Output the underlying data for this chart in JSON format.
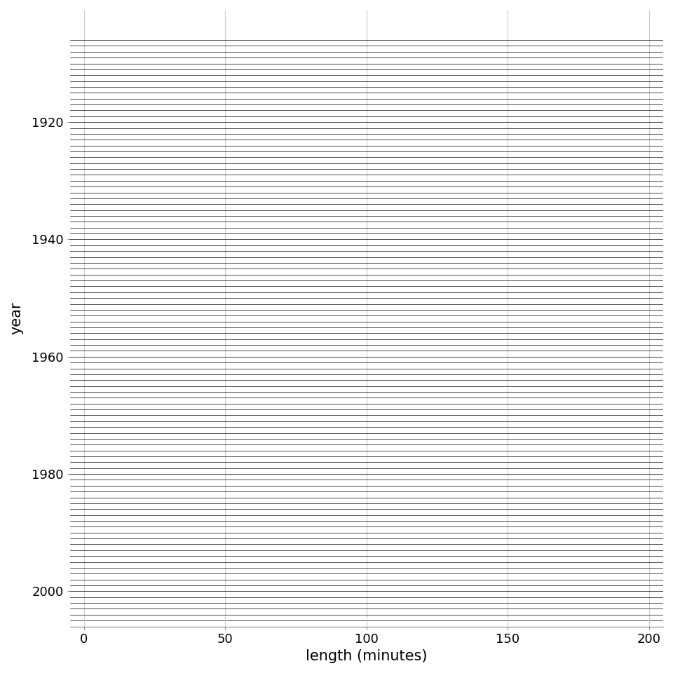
{
  "year_start": 1906,
  "year_end": 2005,
  "x_min": -5,
  "x_max": 205,
  "x_ticks": [
    0,
    50,
    100,
    150,
    200
  ],
  "y_ticks": [
    1920,
    1940,
    1960,
    1980,
    2000
  ],
  "xlabel": "length (minutes)",
  "ylabel": "year",
  "fill_color": "#d8d8d8",
  "fill_alpha": 1.0,
  "line_color": "#1a1a1a",
  "line_width": 0.55,
  "background_color": "#ffffff",
  "grid_color": "#cccccc",
  "overlap": 3.2,
  "bandwidth": 0.15
}
